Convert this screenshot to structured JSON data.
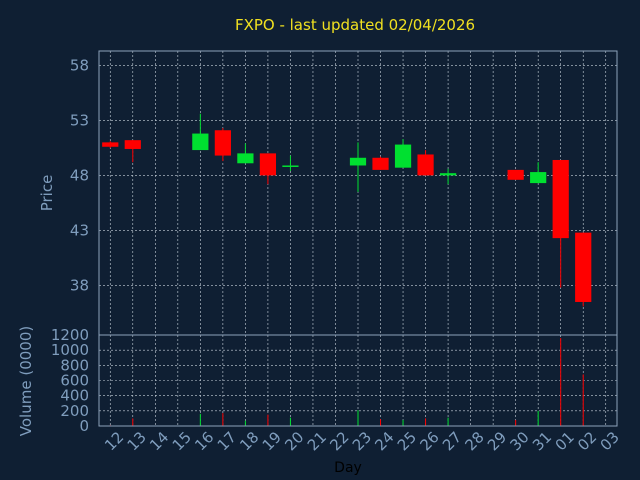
{
  "title": "FXPO - last updated 02/04/2026",
  "colors": {
    "background": "#0f1f33",
    "title": "#f0e020",
    "axis_text": "#7f9dbd",
    "frame": "#8ea3bb",
    "grid": "#c8d2dc",
    "up": "#00e030",
    "down": "#ff0000",
    "dark_text": "#000000"
  },
  "chart_data": [
    {
      "type": "candlestick",
      "ylabel": "Price",
      "ylim": [
        33.5,
        59.3
      ],
      "yticks": [
        38,
        43,
        48,
        53,
        58
      ],
      "grid": true,
      "candles": [
        {
          "day": "12",
          "open": 51.0,
          "close": 50.6,
          "high": 51.1,
          "low": 50.5
        },
        {
          "day": "13",
          "open": 51.2,
          "close": 50.4,
          "high": 51.2,
          "low": 49.2
        },
        {
          "day": "16",
          "open": 50.3,
          "close": 51.8,
          "high": 53.6,
          "low": 50.3
        },
        {
          "day": "17",
          "open": 52.1,
          "close": 49.8,
          "high": 52.3,
          "low": 49.3
        },
        {
          "day": "18",
          "open": 49.1,
          "close": 50.0,
          "high": 50.9,
          "low": 49.1
        },
        {
          "day": "19",
          "open": 50.0,
          "close": 48.0,
          "high": 50.0,
          "low": 47.2
        },
        {
          "day": "20",
          "open": 48.8,
          "close": 48.9,
          "high": 49.8,
          "low": 48.4
        },
        {
          "day": "23",
          "open": 48.9,
          "close": 49.6,
          "high": 51.0,
          "low": 46.5
        },
        {
          "day": "24",
          "open": 49.6,
          "close": 48.5,
          "high": 49.7,
          "low": 48.5
        },
        {
          "day": "25",
          "open": 48.7,
          "close": 50.8,
          "high": 51.3,
          "low": 48.7
        },
        {
          "day": "26",
          "open": 49.9,
          "close": 48.0,
          "high": 50.3,
          "low": 48.0
        },
        {
          "day": "27",
          "open": 48.0,
          "close": 48.2,
          "high": 48.6,
          "low": 47.2
        },
        {
          "day": "30",
          "open": 48.5,
          "close": 47.6,
          "high": 48.5,
          "low": 47.6
        },
        {
          "day": "31",
          "open": 47.3,
          "close": 48.3,
          "high": 49.2,
          "low": 47.3
        },
        {
          "day": "01",
          "open": 49.4,
          "close": 42.3,
          "high": 49.4,
          "low": 37.8
        },
        {
          "day": "02",
          "open": 42.8,
          "close": 36.5,
          "high": 42.8,
          "low": 36.1
        }
      ]
    },
    {
      "type": "bar",
      "ylabel": "Volume (0000)",
      "xlabel": "Day",
      "ylim": [
        0,
        1200
      ],
      "yticks": [
        0,
        200,
        400,
        600,
        800,
        1000,
        1200
      ],
      "grid": true,
      "x_ticks": [
        "12",
        "13",
        "14",
        "15",
        "16",
        "17",
        "18",
        "19",
        "20",
        "21",
        "22",
        "23",
        "24",
        "25",
        "26",
        "27",
        "28",
        "29",
        "30",
        "31",
        "01",
        "02",
        "03"
      ],
      "bars": [
        {
          "day": "12",
          "value": 10,
          "dir": "down"
        },
        {
          "day": "13",
          "value": 100,
          "dir": "down"
        },
        {
          "day": "16",
          "value": 160,
          "dir": "up"
        },
        {
          "day": "17",
          "value": 170,
          "dir": "down"
        },
        {
          "day": "18",
          "value": 70,
          "dir": "up"
        },
        {
          "day": "19",
          "value": 150,
          "dir": "down"
        },
        {
          "day": "20",
          "value": 110,
          "dir": "up"
        },
        {
          "day": "23",
          "value": 210,
          "dir": "up"
        },
        {
          "day": "24",
          "value": 90,
          "dir": "down"
        },
        {
          "day": "25",
          "value": 80,
          "dir": "up"
        },
        {
          "day": "26",
          "value": 100,
          "dir": "down"
        },
        {
          "day": "27",
          "value": 110,
          "dir": "up"
        },
        {
          "day": "30",
          "value": 80,
          "dir": "down"
        },
        {
          "day": "31",
          "value": 200,
          "dir": "up"
        },
        {
          "day": "01",
          "value": 1160,
          "dir": "down"
        },
        {
          "day": "02",
          "value": 680,
          "dir": "down"
        }
      ]
    }
  ]
}
